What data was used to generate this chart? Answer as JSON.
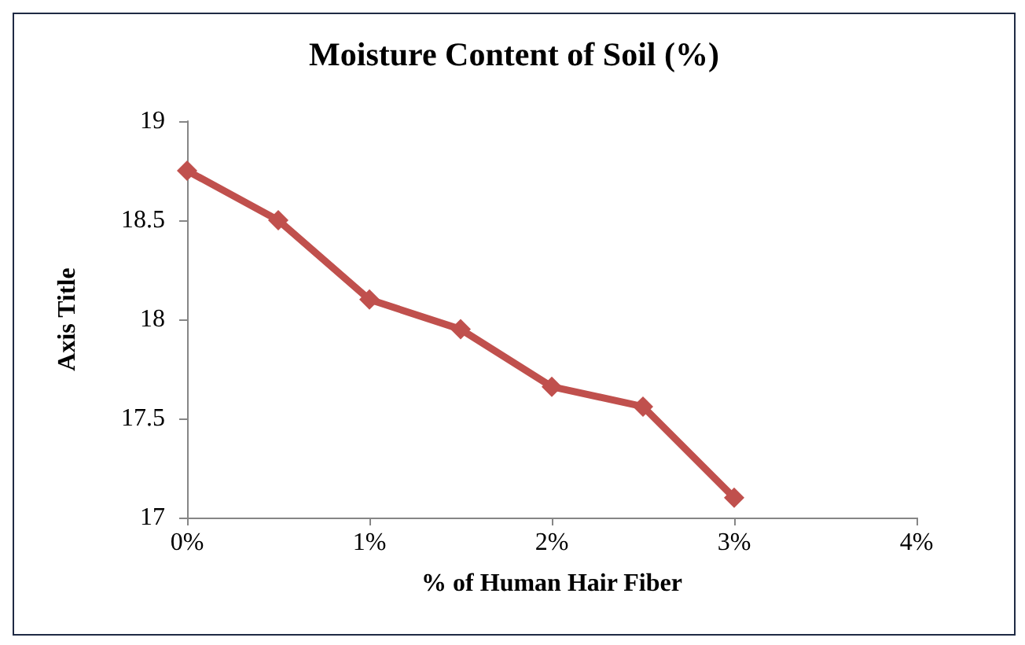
{
  "chart_data": {
    "type": "line",
    "title": "Moisture Content of Soil (%)",
    "xlabel": "% of Human Hair Fiber",
    "ylabel": "Axis Title",
    "x": [
      0,
      0.5,
      1,
      1.5,
      2,
      2.5,
      3
    ],
    "series": [
      {
        "color": "#c0504d",
        "values": [
          18.75,
          18.5,
          18.1,
          17.95,
          17.66,
          17.56,
          17.1
        ]
      }
    ],
    "xlim": [
      0,
      4
    ],
    "xticks": [
      {
        "value": 0,
        "label": "0%"
      },
      {
        "value": 1,
        "label": "1%"
      },
      {
        "value": 2,
        "label": "2%"
      },
      {
        "value": 3,
        "label": "3%"
      },
      {
        "value": 4,
        "label": "4%"
      }
    ],
    "ylim": [
      17,
      19
    ],
    "yticks": [
      17,
      17.5,
      18,
      18.5,
      19
    ],
    "grid": false,
    "marker": "diamond",
    "line_style": "solid"
  }
}
